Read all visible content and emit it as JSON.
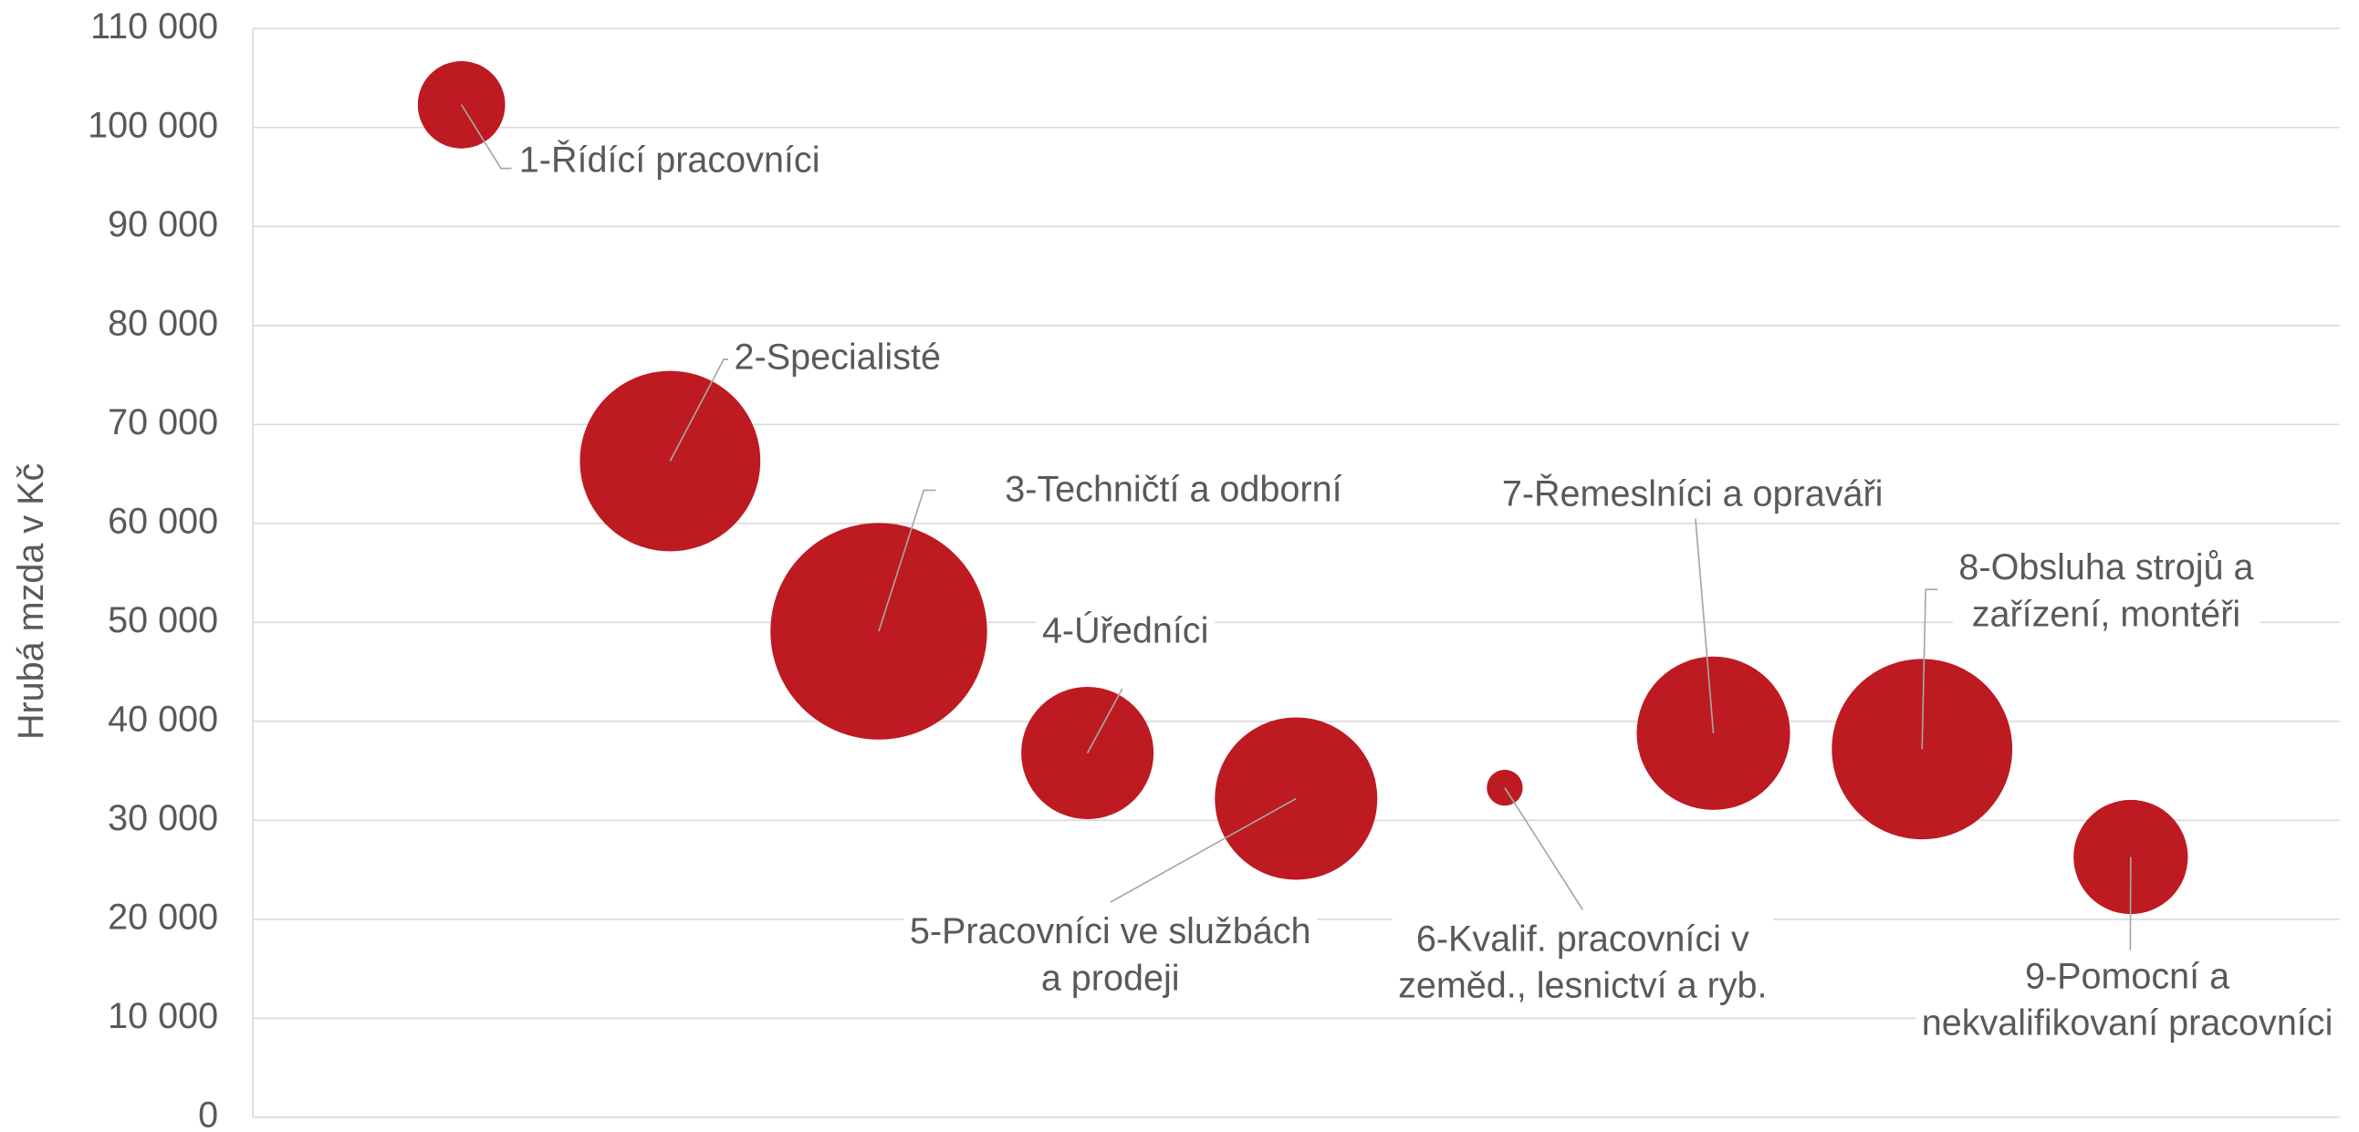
{
  "chart_data": {
    "type": "bubble",
    "y_label": "Hrubá mzda v Kč",
    "color": "#be1a22",
    "x": [
      1,
      2,
      3,
      4,
      5,
      6,
      7,
      8,
      9
    ],
    "values": [
      102300,
      66300,
      49100,
      36800,
      32200,
      33300,
      38800,
      37200,
      26300
    ],
    "sizes": [
      195,
      833,
      1200,
      448,
      675,
      33,
      602,
      833,
      334
    ],
    "labels": [
      [
        "1-Řídící pracovníci"
      ],
      [
        "2-Specialisté"
      ],
      [
        "3-Techničtí a odborní"
      ],
      [
        "4-Úředníci"
      ],
      [
        "5-Pracovníci ve službách",
        "a prodeji"
      ],
      [
        "6-Kvalif. pracovníci v",
        "zeměd., lesnictví a ryb."
      ],
      [
        "7-Řemeslníci a opraváři"
      ],
      [
        "8-Obsluha strojů a",
        "zařízení, montéři"
      ],
      [
        "9-Pomocní a",
        "nekvalifikovaní pracovníci"
      ]
    ],
    "xlim": [
      0,
      10
    ],
    "ylim": [
      0,
      110000
    ],
    "yticks": [
      0,
      {
        "value": 10000,
        "label": "10 000"
      },
      {
        "value": 20000,
        "label": "20 000"
      },
      {
        "value": 30000,
        "label": "30 000"
      },
      {
        "value": 40000,
        "label": "40 000"
      },
      {
        "value": 50000,
        "label": "50 000"
      },
      {
        "value": 60000,
        "label": "60 000"
      },
      {
        "value": 70000,
        "label": "70 000"
      },
      {
        "value": 80000,
        "label": "80 000"
      },
      {
        "value": 90000,
        "label": "90 000"
      },
      {
        "value": 100000,
        "label": "100 000"
      },
      {
        "value": 110000,
        "label": "110 000"
      }
    ],
    "grid": true
  }
}
